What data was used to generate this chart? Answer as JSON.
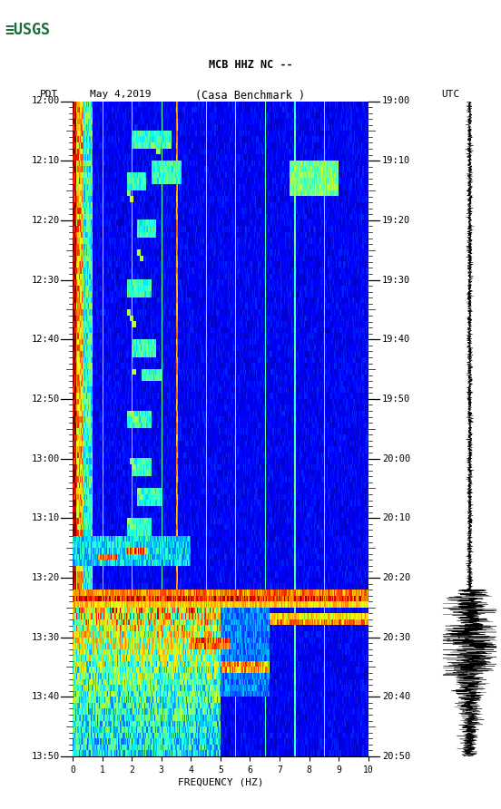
{
  "title_line1": "MCB HHZ NC --",
  "title_line2": "(Casa Benchmark )",
  "left_label": "PDT",
  "date_label": "May 4,2019",
  "right_label": "UTC",
  "left_times": [
    "12:00",
    "12:10",
    "12:20",
    "12:30",
    "12:40",
    "12:50",
    "13:00",
    "13:10",
    "13:20",
    "13:30",
    "13:40",
    "13:50"
  ],
  "right_times": [
    "19:00",
    "19:10",
    "19:20",
    "19:30",
    "19:40",
    "19:50",
    "20:00",
    "20:10",
    "20:20",
    "20:30",
    "20:40",
    "20:50"
  ],
  "freq_min": 0,
  "freq_max": 10,
  "freq_ticks": [
    0,
    1,
    2,
    3,
    4,
    5,
    6,
    7,
    8,
    9,
    10
  ],
  "freq_label": "FREQUENCY (HZ)",
  "bg_color": "#ffffff",
  "spectrogram_cmap": "jet",
  "n_time": 110,
  "n_freq": 300,
  "usgs_green": "#1a6e39",
  "vline_color": "#808040",
  "vline_freqs": [
    1.0,
    2.0,
    3.0,
    3.5,
    4.5,
    5.5,
    6.5,
    7.5,
    8.5
  ]
}
